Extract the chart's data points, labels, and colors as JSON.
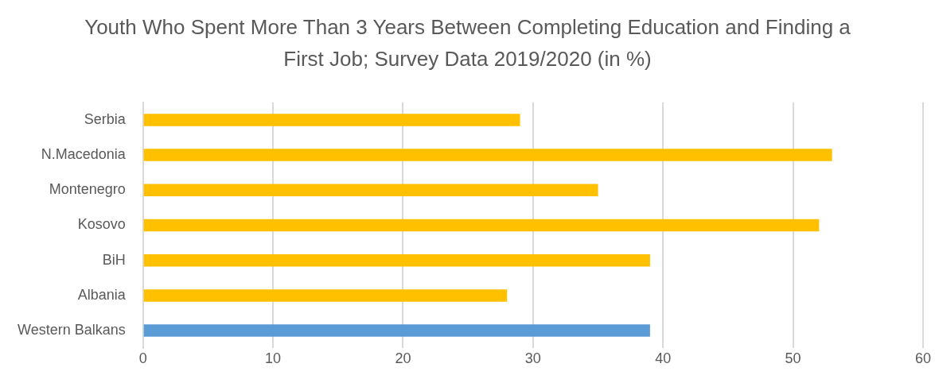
{
  "chart_data": {
    "type": "bar",
    "orientation": "horizontal",
    "title": "Youth Who Spent More Than 3 Years Between Completing Education and Finding a First Job; Survey Data 2019/2020 (in %)",
    "categories": [
      "Serbia",
      "N.Macedonia",
      "Montenegro",
      "Kosovo",
      "BiH",
      "Albania",
      "Western Balkans"
    ],
    "values": [
      29,
      53,
      35,
      52,
      39,
      28,
      39
    ],
    "colors": [
      "#ffc000",
      "#ffc000",
      "#ffc000",
      "#ffc000",
      "#ffc000",
      "#ffc000",
      "#5b9bd5"
    ],
    "xlim": [
      0,
      60
    ],
    "xticks": [
      0,
      10,
      20,
      30,
      40,
      50,
      60
    ],
    "grid": "x",
    "legend": false
  }
}
